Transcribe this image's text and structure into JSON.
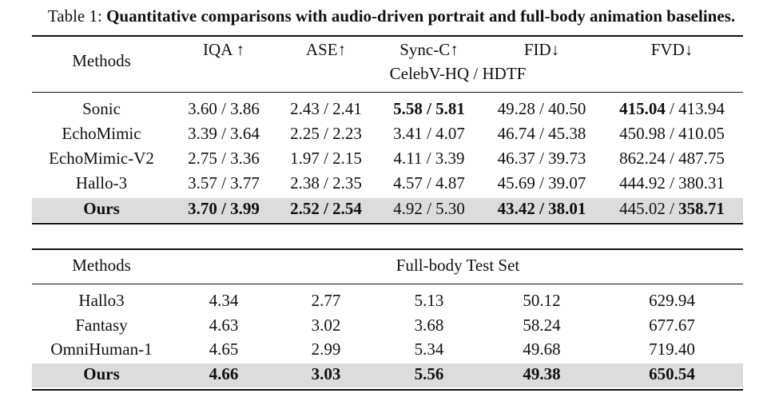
{
  "caption": {
    "prefix": "Table 1:",
    "title": "Quantitative comparisons with audio-driven portrait and full-body animation baselines."
  },
  "table1": {
    "header": {
      "methods": "Methods",
      "columns": [
        "IQA ↑",
        "ASE↑",
        "Sync-C↑",
        "FID↓",
        "FVD↓"
      ],
      "subheader": "CelebV-HQ / HDTF"
    },
    "rows": [
      {
        "method": "Sonic",
        "cells": [
          {
            "a": "3.60 / 3.86"
          },
          {
            "a": "2.43 / 2.41"
          },
          {
            "a": "5.58 / 5.81"
          },
          {
            "a": "49.28 / 40.50"
          },
          {
            "a": "415.04"
          }
        ]
      },
      {
        "method": "EchoMimic",
        "cells": [
          {
            "a": "3.39 / 3.64"
          },
          {
            "a": "2.25 / 2.23"
          },
          {
            "a": "3.41 / 4.07"
          },
          {
            "a": "46.74 / 45.38"
          },
          {
            "a": "450.98 / 410.05"
          }
        ]
      },
      {
        "method": "EchoMimic-V2",
        "cells": [
          {
            "a": "2.75 / 3.36"
          },
          {
            "a": "1.97 / 2.15"
          },
          {
            "a": "4.11 / 3.39"
          },
          {
            "a": "46.37 / 39.73"
          },
          {
            "a": "862.24 / 487.75"
          }
        ]
      },
      {
        "method": "Hallo-3",
        "cells": [
          {
            "a": "3.57 / 3.77"
          },
          {
            "a": "2.38 / 2.35"
          },
          {
            "a": "4.57 / 4.87"
          },
          {
            "a": "45.69 / 39.07"
          },
          {
            "a": "444.92 / 380.31"
          }
        ]
      },
      {
        "method": "Ours",
        "cells": [
          {
            "a": "3.70 / 3.99"
          },
          {
            "a": "2.52 / 2.54"
          },
          {
            "a": "4.92 / 5.30"
          },
          {
            "a": "43.42 / 38.01"
          },
          {
            "a": "445.02 / "
          }
        ]
      }
    ],
    "sonic_fvd_rest": " / 413.94",
    "ours_fvd_bold": "358.71"
  },
  "table2": {
    "header": {
      "methods": "Methods",
      "testset": "Full-body Test Set"
    },
    "rows": [
      {
        "method": "Hallo3",
        "values": [
          "4.34",
          "2.77",
          "5.13",
          "50.12",
          "629.94"
        ]
      },
      {
        "method": "Fantasy",
        "values": [
          "4.63",
          "3.02",
          "3.68",
          "58.24",
          "677.67"
        ]
      },
      {
        "method": "OmniHuman-1",
        "values": [
          "4.65",
          "2.99",
          "5.34",
          "49.68",
          "719.40"
        ]
      },
      {
        "method": "Ours",
        "values": [
          "4.66",
          "3.03",
          "5.56",
          "49.38",
          "650.54"
        ]
      }
    ]
  }
}
